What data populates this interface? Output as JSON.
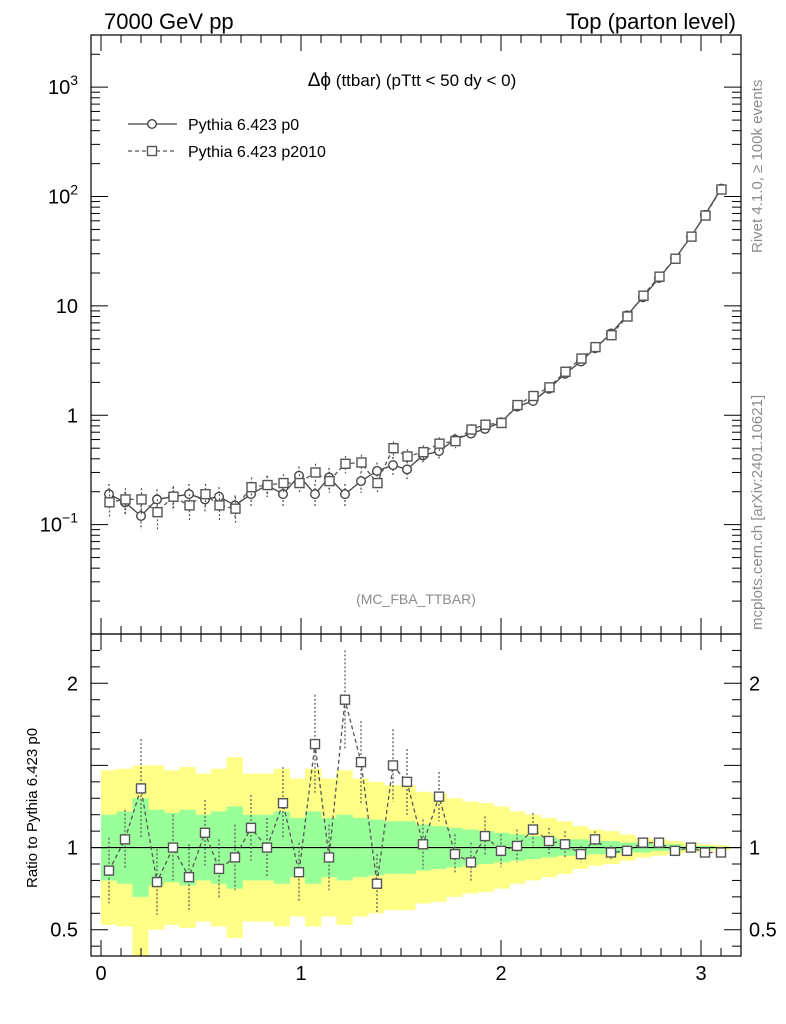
{
  "header": {
    "left": "7000 GeV pp",
    "right": "Top (parton level)"
  },
  "side_labels": {
    "rivet": "Rivet 4.1.0, ≥ 100k events",
    "mcplots": "mcplots.cern.ch [arXiv:2401.10621]"
  },
  "watermark": "(MC_FBA_TTBAR)",
  "colors": {
    "series0": "#444444",
    "series1": "#555555",
    "band_outer": "#ffff88",
    "band_inner": "#99ff99"
  },
  "chart_data": [
    {
      "type": "line",
      "title": "Δϕ (ttbar) (pTtt < 50 dy < 0)",
      "title_parts": {
        "symbol": "Δϕ",
        "rest": " (ttbar) (pTtt < 50 dy < 0)"
      },
      "xlabel": "",
      "ylabel": "",
      "yscale": "log",
      "xlim": [
        -0.05,
        3.2
      ],
      "ylim": [
        0.01,
        3000
      ],
      "y_ticks": [
        {
          "value": 0.1,
          "base": "10",
          "exp": "−1"
        },
        {
          "value": 1,
          "label": "1"
        },
        {
          "value": 10,
          "label": "10"
        },
        {
          "value": 100,
          "base": "10",
          "exp": "2"
        },
        {
          "value": 1000,
          "base": "10",
          "exp": "3"
        }
      ],
      "x": [
        0.04,
        0.12,
        0.2,
        0.28,
        0.36,
        0.44,
        0.52,
        0.59,
        0.67,
        0.75,
        0.83,
        0.91,
        0.99,
        1.07,
        1.14,
        1.22,
        1.3,
        1.38,
        1.46,
        1.53,
        1.61,
        1.69,
        1.77,
        1.85,
        1.92,
        2.0,
        2.08,
        2.16,
        2.24,
        2.32,
        2.4,
        2.47,
        2.55,
        2.63,
        2.71,
        2.79,
        2.87,
        2.95,
        3.02,
        3.1
      ],
      "series": [
        {
          "name": "Pythia 6.423 p0",
          "style": "solid",
          "marker": "circle",
          "values": [
            0.19,
            0.16,
            0.12,
            0.17,
            0.18,
            0.19,
            0.17,
            0.18,
            0.15,
            0.19,
            0.23,
            0.19,
            0.28,
            0.19,
            0.27,
            0.19,
            0.25,
            0.31,
            0.35,
            0.32,
            0.43,
            0.47,
            0.6,
            0.68,
            0.75,
            0.86,
            1.2,
            1.35,
            1.75,
            2.4,
            3.1,
            4.1,
            5.6,
            8.2,
            12,
            18,
            27,
            43,
            68,
            118
          ],
          "errors": [
            0.045,
            0.04,
            0.03,
            0.04,
            0.04,
            0.045,
            0.04,
            0.04,
            0.035,
            0.045,
            0.05,
            0.045,
            0.06,
            0.045,
            0.06,
            0.045,
            0.055,
            0.06,
            0.065,
            0.06,
            0.07,
            0.07,
            0.08,
            0.08,
            0.09,
            0.1,
            0.12,
            0.12,
            0.14,
            0.17,
            0.2,
            0.24,
            0.3,
            0.4,
            0.5,
            0.7,
            0.9,
            1.2,
            1.6,
            2.2
          ]
        },
        {
          "name": "Pythia 6.423 p2010",
          "style": "dashed",
          "marker": "square",
          "values": [
            0.16,
            0.17,
            0.17,
            0.13,
            0.18,
            0.15,
            0.19,
            0.15,
            0.14,
            0.22,
            0.23,
            0.24,
            0.24,
            0.3,
            0.25,
            0.36,
            0.37,
            0.24,
            0.5,
            0.42,
            0.46,
            0.55,
            0.58,
            0.74,
            0.82,
            0.85,
            1.24,
            1.5,
            1.8,
            2.5,
            3.3,
            4.2,
            5.4,
            8.0,
            12.4,
            18.5,
            27,
            43,
            67,
            116
          ],
          "errors": [
            0.045,
            0.045,
            0.045,
            0.04,
            0.045,
            0.04,
            0.045,
            0.04,
            0.04,
            0.05,
            0.05,
            0.05,
            0.05,
            0.06,
            0.055,
            0.065,
            0.065,
            0.05,
            0.075,
            0.07,
            0.07,
            0.08,
            0.08,
            0.09,
            0.09,
            0.1,
            0.12,
            0.13,
            0.14,
            0.17,
            0.2,
            0.24,
            0.3,
            0.4,
            0.5,
            0.7,
            0.9,
            1.2,
            1.6,
            2.2
          ]
        }
      ]
    },
    {
      "type": "line",
      "title": "",
      "xlabel": "",
      "ylabel": "Ratio to Pythia 6.423 p0",
      "xlim": [
        -0.05,
        3.2
      ],
      "ylim": [
        0.34,
        2.3
      ],
      "y_ticks": [
        {
          "value": 0.5,
          "label": "0.5"
        },
        {
          "value": 1,
          "label": "1"
        },
        {
          "value": 2,
          "label": "2"
        }
      ],
      "x_ticks": [
        {
          "value": 0,
          "label": "0"
        },
        {
          "value": 1,
          "label": "1"
        },
        {
          "value": 2,
          "label": "2"
        },
        {
          "value": 3,
          "label": "3"
        }
      ],
      "x": [
        0.04,
        0.12,
        0.2,
        0.28,
        0.36,
        0.44,
        0.52,
        0.59,
        0.67,
        0.75,
        0.83,
        0.91,
        0.99,
        1.07,
        1.14,
        1.22,
        1.3,
        1.38,
        1.46,
        1.53,
        1.61,
        1.69,
        1.77,
        1.85,
        1.92,
        2.0,
        2.08,
        2.16,
        2.24,
        2.32,
        2.4,
        2.47,
        2.55,
        2.63,
        2.71,
        2.79,
        2.87,
        2.95,
        3.02,
        3.1
      ],
      "bin_edges": [
        0,
        0.0785,
        0.157,
        0.2355,
        0.314,
        0.3925,
        0.471,
        0.5495,
        0.628,
        0.7065,
        0.785,
        0.8635,
        0.942,
        1.0205,
        1.099,
        1.1775,
        1.256,
        1.3345,
        1.413,
        1.4915,
        1.57,
        1.6485,
        1.727,
        1.8055,
        1.884,
        1.9625,
        2.041,
        2.1195,
        2.198,
        2.2765,
        2.355,
        2.4335,
        2.512,
        2.5905,
        2.669,
        2.7475,
        2.826,
        2.9045,
        2.983,
        3.0615,
        3.14
      ],
      "reference_value": 1,
      "bands": {
        "outer_lo": [
          0.53,
          0.52,
          0.3,
          0.5,
          0.53,
          0.51,
          0.55,
          0.52,
          0.45,
          0.55,
          0.55,
          0.52,
          0.58,
          0.52,
          0.58,
          0.53,
          0.58,
          0.6,
          0.62,
          0.62,
          0.66,
          0.67,
          0.7,
          0.72,
          0.73,
          0.75,
          0.78,
          0.8,
          0.82,
          0.84,
          0.87,
          0.89,
          0.9,
          0.92,
          0.94,
          0.95,
          0.96,
          0.97,
          0.98,
          0.985
        ],
        "outer_hi": [
          1.47,
          1.48,
          1.5,
          1.5,
          1.47,
          1.49,
          1.45,
          1.48,
          1.55,
          1.45,
          1.45,
          1.48,
          1.42,
          1.48,
          1.42,
          1.47,
          1.42,
          1.4,
          1.38,
          1.38,
          1.34,
          1.33,
          1.3,
          1.28,
          1.27,
          1.25,
          1.22,
          1.2,
          1.18,
          1.16,
          1.13,
          1.11,
          1.1,
          1.08,
          1.06,
          1.05,
          1.04,
          1.03,
          1.02,
          1.015
        ],
        "inner_lo": [
          0.8,
          0.78,
          0.7,
          0.77,
          0.79,
          0.77,
          0.8,
          0.78,
          0.75,
          0.8,
          0.8,
          0.78,
          0.82,
          0.78,
          0.82,
          0.8,
          0.82,
          0.83,
          0.84,
          0.84,
          0.86,
          0.87,
          0.88,
          0.89,
          0.9,
          0.91,
          0.92,
          0.93,
          0.94,
          0.95,
          0.95,
          0.96,
          0.96,
          0.97,
          0.97,
          0.98,
          0.98,
          0.99,
          0.99,
          0.995
        ],
        "inner_hi": [
          1.2,
          1.22,
          1.3,
          1.23,
          1.21,
          1.23,
          1.2,
          1.22,
          1.25,
          1.2,
          1.2,
          1.22,
          1.18,
          1.22,
          1.18,
          1.2,
          1.18,
          1.17,
          1.16,
          1.16,
          1.14,
          1.13,
          1.12,
          1.11,
          1.1,
          1.09,
          1.08,
          1.07,
          1.06,
          1.05,
          1.05,
          1.04,
          1.04,
          1.03,
          1.03,
          1.02,
          1.02,
          1.01,
          1.01,
          1.005
        ]
      },
      "series": [
        {
          "name": "Pythia 6.423 p2010",
          "style": "dashed",
          "marker": "square",
          "values": [
            0.86,
            1.05,
            1.36,
            0.79,
            1.0,
            0.82,
            1.09,
            0.87,
            0.94,
            1.12,
            1.0,
            1.27,
            0.85,
            1.63,
            0.94,
            1.9,
            1.52,
            0.78,
            1.5,
            1.4,
            1.02,
            1.31,
            0.96,
            0.91,
            1.07,
            0.98,
            1.01,
            1.11,
            1.04,
            1.02,
            0.96,
            1.05,
            0.97,
            0.98,
            1.03,
            1.03,
            0.98,
            1.0,
            0.97,
            0.97
          ],
          "errors": [
            0.2,
            0.18,
            0.3,
            0.2,
            0.2,
            0.2,
            0.2,
            0.18,
            0.2,
            0.2,
            0.18,
            0.22,
            0.18,
            0.3,
            0.2,
            0.3,
            0.25,
            0.18,
            0.22,
            0.2,
            0.15,
            0.15,
            0.12,
            0.12,
            0.12,
            0.1,
            0.1,
            0.1,
            0.08,
            0.08,
            0.05,
            0.05,
            0.04,
            0.03,
            0.03,
            0.02,
            0.02,
            0.015,
            0.012,
            0.01
          ]
        }
      ]
    }
  ]
}
